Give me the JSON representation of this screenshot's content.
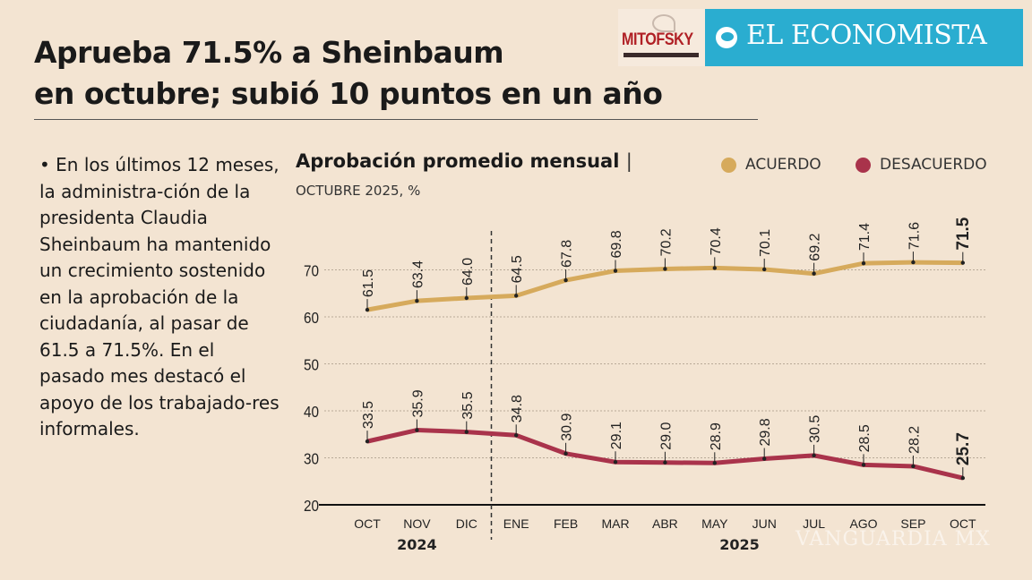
{
  "header": {
    "title_line1": "Aprueba 71.5% a Sheinbaum",
    "title_line2": "en octubre; subió 10 puntos en un año",
    "logos": [
      "MITOFSKY",
      "EL ECONOMISTA"
    ]
  },
  "body_text": "• En los últimos 12 meses, la administra-ción de la presidenta Claudia Sheinbaum ha mantenido un crecimiento sostenido en la aprobación de la ciudadanía, al pasar de 61.5 a 71.5%. En el pasado mes destacó el apoyo de los trabajado-res informales.",
  "watermark": "VANGUARDIA MX",
  "chart_data": {
    "type": "line",
    "title": "Aprobación promedio mensual",
    "title_sep": "|",
    "subtitle": "OCTUBRE 2025, %",
    "categories": [
      "OCT",
      "NOV",
      "DIC",
      "ENE",
      "FEB",
      "MAR",
      "ABR",
      "MAY",
      "JUN",
      "JUL",
      "AGO",
      "SEP",
      "OCT"
    ],
    "year_labels": [
      {
        "label": "2024",
        "from": 0,
        "to": 2
      },
      {
        "label": "2025",
        "from": 3,
        "to": 12
      }
    ],
    "ylim": [
      20,
      75
    ],
    "yticks": [
      20,
      30,
      40,
      50,
      60,
      70
    ],
    "grid": true,
    "legend_position": "top-right",
    "series": [
      {
        "name": "ACUERDO",
        "color": "#d6aa5c",
        "values": [
          61.5,
          63.4,
          64.0,
          64.5,
          67.8,
          69.8,
          70.2,
          70.4,
          70.1,
          69.2,
          71.4,
          71.6,
          71.5
        ]
      },
      {
        "name": "DESACUERDO",
        "color": "#a9334b",
        "values": [
          33.5,
          35.9,
          35.5,
          34.8,
          30.9,
          29.1,
          29.0,
          28.9,
          29.8,
          30.5,
          28.5,
          28.2,
          25.7
        ]
      }
    ]
  }
}
